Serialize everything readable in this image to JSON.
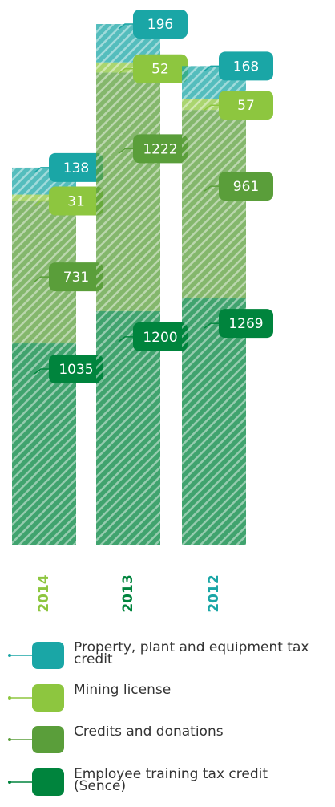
{
  "chart_data": {
    "type": "stacked_bar",
    "categories": [
      "2014",
      "2013",
      "2012"
    ],
    "category_colors": [
      "#8dc63f",
      "#00843d",
      "#1aa6a6"
    ],
    "series": [
      {
        "name": "Employee training tax credit (Sence)",
        "color": "#00843d",
        "values": [
          1035,
          1200,
          1269
        ]
      },
      {
        "name": "Credits and donations",
        "color": "#5a9e3a",
        "values": [
          731,
          1222,
          961
        ]
      },
      {
        "name": "Mining license",
        "color": "#8dc63f",
        "values": [
          31,
          52,
          57
        ]
      },
      {
        "name": "Property, plant and equipment tax credit",
        "color": "#1aa6a6",
        "values": [
          138,
          196,
          168
        ]
      }
    ]
  }
}
